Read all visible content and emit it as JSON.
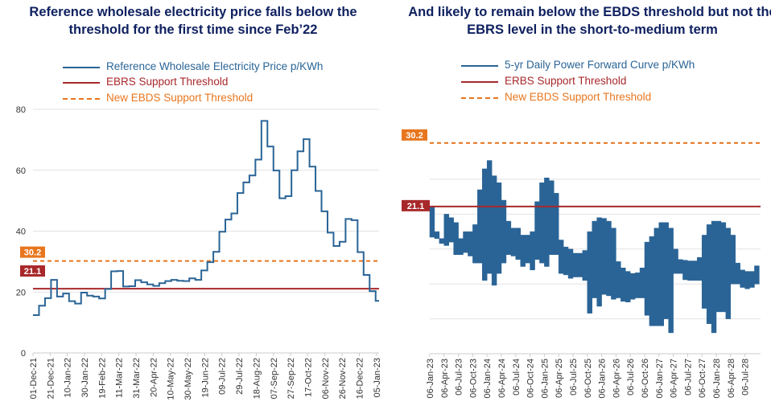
{
  "colors": {
    "price": "#2a6496",
    "ebrs": "#a8282a",
    "ebds": "#e8761e",
    "title": "#0f2160",
    "grid": "#e2e2e2"
  },
  "chart_data": [
    {
      "type": "line",
      "step": true,
      "title": "Reference wholesale electricity price falls below the threshold for the first time since Feb’22",
      "legend": {
        "placement": "top",
        "entries": [
          {
            "label": "Reference Wholesale Electricity Price p/KWh",
            "color": "#2a6496",
            "style": "solid"
          },
          {
            "label": "EBRS Support Threshold",
            "color": "#a8282a",
            "style": "solid"
          },
          {
            "label": "New EBDS Support Threshold",
            "color": "#e8761e",
            "style": "dashed"
          }
        ]
      },
      "ylim": [
        0,
        80
      ],
      "yticks": [
        "0",
        "20",
        "40",
        "60",
        "80"
      ],
      "grid": true,
      "xticks": [
        "01-Dec-21",
        "21-Dec-21",
        "10-Jan-22",
        "30-Jan-22",
        "19-Feb-22",
        "11-Mar-22",
        "31-Mar-22",
        "20-Apr-22",
        "10-May-22",
        "30-May-22",
        "19-Jun-22",
        "09-Jul-22",
        "29-Jul-22",
        "18-Aug-22",
        "07-Sep-22",
        "27-Sep-22",
        "17-Oct-22",
        "06-Nov-22",
        "26-Nov-22",
        "16-Dec-22",
        "05-Jan-23"
      ],
      "thresholds": [
        {
          "name": "EBRS Support Threshold",
          "value": 21.1,
          "label": "21.1"
        },
        {
          "name": "New EBDS Support Threshold",
          "value": 30.2,
          "label": "30.2"
        }
      ],
      "series": [
        {
          "name": "Reference Wholesale Electricity Price p/KWh",
          "x": [
            "2021-12-01",
            "2021-12-08",
            "2021-12-15",
            "2021-12-22",
            "2021-12-29",
            "2022-01-05",
            "2022-01-12",
            "2022-01-19",
            "2022-01-26",
            "2022-02-02",
            "2022-02-09",
            "2022-02-16",
            "2022-02-23",
            "2022-03-02",
            "2022-03-09",
            "2022-03-16",
            "2022-03-23",
            "2022-03-30",
            "2022-04-06",
            "2022-04-13",
            "2022-04-20",
            "2022-04-27",
            "2022-05-04",
            "2022-05-11",
            "2022-05-18",
            "2022-05-25",
            "2022-06-01",
            "2022-06-08",
            "2022-06-15",
            "2022-06-22",
            "2022-06-29",
            "2022-07-06",
            "2022-07-13",
            "2022-07-20",
            "2022-07-27",
            "2022-08-03",
            "2022-08-10",
            "2022-08-17",
            "2022-08-24",
            "2022-08-31",
            "2022-09-07",
            "2022-09-14",
            "2022-09-21",
            "2022-09-28",
            "2022-10-05",
            "2022-10-12",
            "2022-10-19",
            "2022-10-26",
            "2022-11-02",
            "2022-11-09",
            "2022-11-16",
            "2022-11-23",
            "2022-11-30",
            "2022-12-07",
            "2022-12-14",
            "2022-12-21",
            "2022-12-28",
            "2023-01-04"
          ],
          "values": [
            12.4,
            15.5,
            18.0,
            24.0,
            18.5,
            19.5,
            17.0,
            16.2,
            19.8,
            18.8,
            18.5,
            17.9,
            21.0,
            26.8,
            26.9,
            21.8,
            21.9,
            23.9,
            23.2,
            22.5,
            22.0,
            22.9,
            23.6,
            24.0,
            23.7,
            23.6,
            24.5,
            24.0,
            27.1,
            29.8,
            33.2,
            39.8,
            43.8,
            45.8,
            52.5,
            56.0,
            58.3,
            63.5,
            76.2,
            67.8,
            59.9,
            50.8,
            51.5,
            60.0,
            66.2,
            70.2,
            61.2,
            53.2,
            46.5,
            39.5,
            35.1,
            36.5,
            44.0,
            43.6,
            33.1,
            25.6,
            20.3,
            17.1
          ]
        }
      ]
    },
    {
      "type": "area",
      "title": "And likely to remain below the EBDS threshold but not the EBRS level in the short-to-medium term",
      "legend": {
        "placement": "top",
        "entries": [
          {
            "label": "5-yr Daily Power Forward Curve p/KWh",
            "color": "#2a6496",
            "style": "solid"
          },
          {
            "label": "ERBS Support Threshold",
            "color": "#a8282a",
            "style": "solid"
          },
          {
            "label": "New EBDS Support Threshold",
            "color": "#e8761e",
            "style": "dashed"
          }
        ]
      },
      "ylim": [
        0,
        32
      ],
      "ygrid": [
        5,
        10,
        15,
        20,
        25
      ],
      "yticks_shown": false,
      "grid": true,
      "xticks": [
        "06-Jan-23",
        "06-Apr-23",
        "06-Jul-23",
        "06-Oct-23",
        "06-Jan-24",
        "06-Apr-24",
        "06-Jul-24",
        "06-Oct-24",
        "06-Jan-25",
        "06-Apr-25",
        "06-Jul-25",
        "06-Oct-25",
        "06-Jan-26",
        "06-Apr-26",
        "06-Jul-26",
        "06-Oct-26",
        "06-Jan-27",
        "06-Apr-27",
        "06-Jul-27",
        "06-Oct-27",
        "06-Jan-28",
        "06-Apr-28",
        "06-Jul-28"
      ],
      "thresholds": [
        {
          "name": "ERBS Support Threshold",
          "value": 21.1,
          "label": "21.1"
        },
        {
          "name": "New EBDS Support Threshold",
          "value": 30.2,
          "label": "30.2"
        }
      ],
      "series": [
        {
          "name": "5-yr Daily Power Forward Curve p/KWh",
          "months": [
            "2023-01",
            "2023-02",
            "2023-03",
            "2023-04",
            "2023-05",
            "2023-06",
            "2023-07",
            "2023-08",
            "2023-09",
            "2023-10",
            "2023-11",
            "2023-12",
            "2024-01",
            "2024-02",
            "2024-03",
            "2024-04",
            "2024-05",
            "2024-06",
            "2024-07",
            "2024-08",
            "2024-09",
            "2024-10",
            "2024-11",
            "2024-12",
            "2025-01",
            "2025-02",
            "2025-03",
            "2025-04",
            "2025-05",
            "2025-06",
            "2025-07",
            "2025-08",
            "2025-09",
            "2025-10",
            "2025-11",
            "2025-12",
            "2026-01",
            "2026-02",
            "2026-03",
            "2026-04",
            "2026-05",
            "2026-06",
            "2026-07",
            "2026-08",
            "2026-09",
            "2026-10",
            "2026-11",
            "2026-12",
            "2027-01",
            "2027-02",
            "2027-03",
            "2027-04",
            "2027-05",
            "2027-06",
            "2027-07",
            "2027-08",
            "2027-09",
            "2027-10",
            "2027-11",
            "2027-12",
            "2028-01",
            "2028-02",
            "2028-03",
            "2028-04",
            "2028-05",
            "2028-06",
            "2028-07",
            "2028-08",
            "2028-09"
          ],
          "high": [
            21.0,
            17.5,
            16.5,
            20.0,
            19.5,
            18.8,
            16.5,
            17.5,
            17.5,
            18.5,
            23.5,
            26.5,
            27.7,
            25.5,
            24.5,
            22.0,
            19.0,
            18.0,
            18.0,
            17.0,
            17.0,
            17.5,
            21.8,
            24.5,
            25.2,
            24.8,
            23.0,
            16.3,
            15.3,
            15.0,
            14.4,
            14.4,
            14.8,
            17.5,
            19.0,
            19.5,
            19.4,
            19.0,
            18.0,
            13.2,
            12.3,
            11.8,
            11.5,
            11.6,
            12.3,
            16.0,
            16.8,
            18.0,
            18.8,
            18.8,
            18.0,
            15.0,
            13.5,
            13.4,
            13.3,
            13.3,
            13.8,
            17.0,
            18.5,
            19.0,
            19.0,
            18.8,
            18.0,
            17.0,
            13.0,
            12.0,
            11.8,
            11.8,
            12.6
          ],
          "low": [
            16.7,
            16.5,
            15.8,
            15.5,
            16.0,
            14.2,
            14.2,
            14.5,
            14.0,
            13.0,
            13.0,
            10.5,
            11.5,
            9.8,
            11.5,
            13.0,
            14.2,
            14.0,
            13.5,
            12.5,
            13.0,
            12.0,
            13.5,
            13.0,
            12.5,
            14.2,
            14.2,
            11.5,
            11.3,
            10.8,
            11.0,
            11.0,
            10.5,
            5.8,
            8.0,
            6.8,
            8.5,
            8.3,
            7.8,
            8.0,
            7.5,
            7.4,
            7.8,
            8.0,
            8.0,
            5.5,
            4.0,
            4.0,
            4.0,
            5.0,
            3.0,
            11.5,
            11.5,
            10.6,
            10.5,
            10.5,
            10.5,
            6.5,
            4.3,
            3.0,
            6.0,
            6.0,
            5.0,
            10.0,
            10.0,
            9.5,
            9.3,
            9.5,
            10.0
          ]
        }
      ]
    }
  ]
}
